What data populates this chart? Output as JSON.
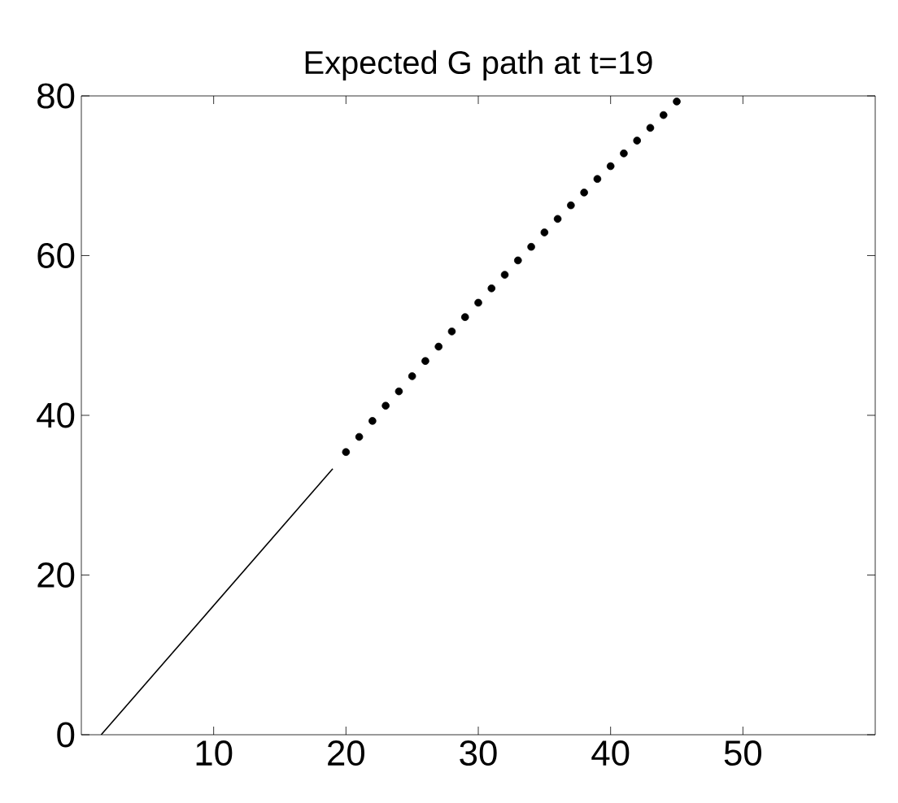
{
  "chart_data": {
    "type": "line",
    "title": "Expected G path at t=19",
    "xlim": [
      0,
      60
    ],
    "ylim": [
      0,
      80
    ],
    "xticks": [
      10,
      20,
      30,
      40,
      50
    ],
    "yticks": [
      0,
      20,
      40,
      60,
      80
    ],
    "series": [
      {
        "color": "#000000",
        "marker": "none",
        "line_style": "solid",
        "x": [
          1.5,
          19
        ],
        "values": [
          0,
          33.3
        ]
      },
      {
        "type": "scatter",
        "color": "#000000",
        "marker": "circle",
        "x": [
          20,
          21,
          22,
          23,
          24,
          25,
          26,
          27,
          28,
          29,
          30,
          31,
          32,
          33,
          34,
          35,
          36,
          37,
          38,
          39,
          40,
          41,
          42,
          43,
          44,
          45
        ],
        "values": [
          35.4,
          37.3,
          39.3,
          41.2,
          43.0,
          44.9,
          46.8,
          48.6,
          50.5,
          52.3,
          54.1,
          55.9,
          57.6,
          59.4,
          61.1,
          62.9,
          64.6,
          66.3,
          67.9,
          69.6,
          71.2,
          72.8,
          74.4,
          76.0,
          77.6,
          79.3
        ]
      }
    ]
  }
}
